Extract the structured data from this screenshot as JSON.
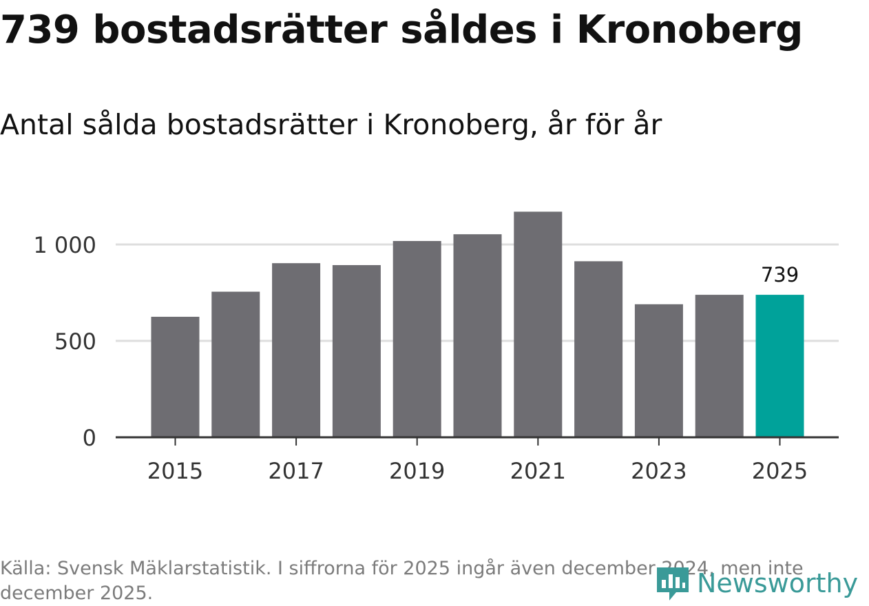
{
  "title": "739 bostadsrätter såldes i Kronoberg",
  "subtitle": "Antal sålda bostadsrätter i Kronoberg, år för år",
  "source": "Källa: Svensk Mäklarstatistik. I siffrorna för 2025 ingår även december 2024, men inte december 2025.",
  "logo": {
    "text": "Newsworthy",
    "icon": "newsworthy-logo-icon"
  },
  "colors": {
    "bar": "#6e6d72",
    "highlight": "#00a29a",
    "gridline": "#dedede",
    "axis": "#333333",
    "logo": "#3a9a98"
  },
  "chart_data": {
    "type": "bar",
    "title": "Antal sålda bostadsrätter i Kronoberg, år för år",
    "xlabel": "",
    "ylabel": "",
    "categories": [
      "2015",
      "2016",
      "2017",
      "2018",
      "2019",
      "2020",
      "2021",
      "2022",
      "2023",
      "2024",
      "2025"
    ],
    "values": [
      625,
      755,
      903,
      893,
      1018,
      1053,
      1170,
      913,
      690,
      739,
      739
    ],
    "highlight_index": 10,
    "data_labels": [
      {
        "index": 10,
        "text": "739"
      }
    ],
    "ylim": [
      0,
      1250
    ],
    "yticks": [
      0,
      500,
      1000
    ],
    "ytick_labels": [
      "0",
      "500",
      "1 000"
    ],
    "xtick_labels": [
      "2015",
      "2017",
      "2019",
      "2021",
      "2023",
      "2025"
    ],
    "grid": true,
    "legend": "none"
  }
}
